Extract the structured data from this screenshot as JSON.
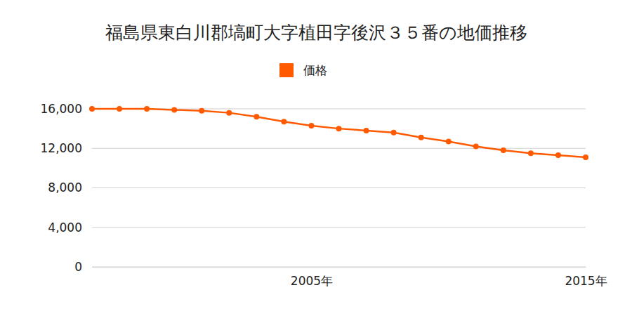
{
  "chart_data": {
    "type": "line",
    "title": "福島県東白川郡塙町大字植田字後沢３５番の地価推移",
    "x": [
      1997,
      1998,
      1999,
      2000,
      2001,
      2002,
      2003,
      2004,
      2005,
      2006,
      2007,
      2008,
      2009,
      2010,
      2011,
      2012,
      2013,
      2014,
      2015
    ],
    "series": [
      {
        "name": "価格",
        "color": "#ff5a00",
        "marker": "circle",
        "values": [
          16000,
          16000,
          16000,
          15900,
          15800,
          15600,
          15200,
          14700,
          14300,
          14000,
          13800,
          13600,
          13100,
          12700,
          12200,
          11800,
          11500,
          11300,
          11100
        ]
      }
    ],
    "xlim": [
      1997,
      2015
    ],
    "xticks": [
      {
        "value": 2005,
        "label": "2005年"
      },
      {
        "value": 2015,
        "label": "2015年"
      }
    ],
    "ylim": [
      0,
      16000
    ],
    "yticks": [
      {
        "value": 0,
        "label": "0"
      },
      {
        "value": 4000,
        "label": "4,000"
      },
      {
        "value": 8000,
        "label": "8,000"
      },
      {
        "value": 12000,
        "label": "12,000"
      },
      {
        "value": 16000,
        "label": "16,000"
      }
    ],
    "grid": true,
    "legend": "top"
  }
}
